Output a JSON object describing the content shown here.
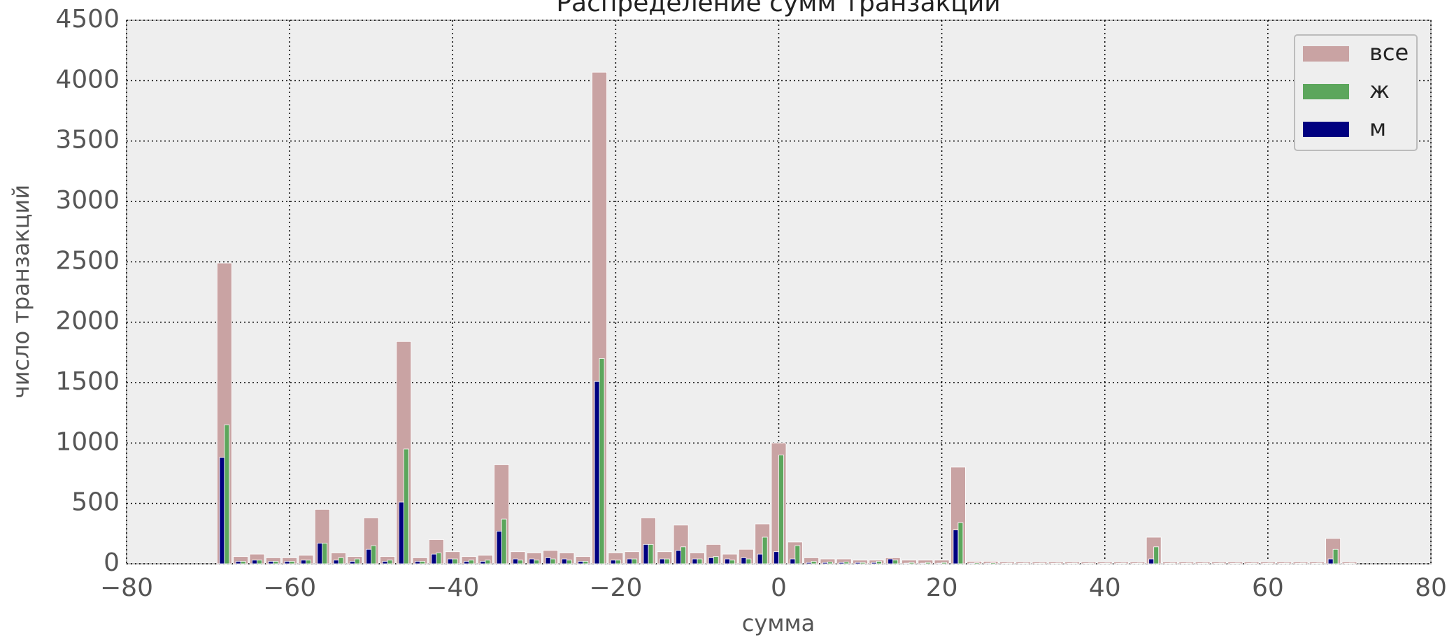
{
  "chart_data": {
    "type": "histogram",
    "title": "Распределение сумм транзакций",
    "xlabel": "сумма",
    "ylabel": "число транзакций",
    "bins": [
      -69,
      -67,
      -65,
      -63,
      -61,
      -59,
      -57,
      -55,
      -53,
      -51,
      -49,
      -47,
      -45,
      -43,
      -41,
      -39,
      -37,
      -35,
      -33,
      -31,
      -29,
      -27,
      -25,
      -23,
      -21,
      -19,
      -17,
      -15,
      -13,
      -11,
      -9,
      -7,
      -5,
      -3,
      -1,
      1,
      3,
      5,
      7,
      9,
      11,
      13,
      15,
      17,
      19,
      21,
      23,
      25,
      27,
      29,
      31,
      33,
      35,
      37,
      39,
      41,
      43,
      45,
      47,
      49,
      51,
      53,
      55,
      57,
      59,
      61,
      63,
      65,
      67,
      69,
      71
    ],
    "series": [
      {
        "name": "все",
        "color": "#c9a3a3",
        "values": [
          2490,
          60,
          80,
          50,
          50,
          70,
          450,
          90,
          60,
          380,
          60,
          1840,
          50,
          200,
          100,
          60,
          70,
          820,
          100,
          90,
          110,
          90,
          60,
          4070,
          90,
          100,
          380,
          100,
          320,
          90,
          160,
          80,
          120,
          330,
          1000,
          180,
          50,
          40,
          40,
          30,
          30,
          50,
          30,
          30,
          30,
          800,
          20,
          20,
          15,
          15,
          15,
          15,
          15,
          15,
          15,
          15,
          15,
          220,
          15,
          15,
          15,
          15,
          15,
          15,
          15,
          15,
          15,
          15,
          210,
          15
        ]
      },
      {
        "name": "ж",
        "color": "#5ca65c",
        "values": [
          1150,
          20,
          30,
          20,
          20,
          30,
          170,
          50,
          40,
          150,
          30,
          950,
          20,
          90,
          40,
          30,
          30,
          370,
          30,
          30,
          40,
          30,
          20,
          1700,
          30,
          40,
          160,
          40,
          140,
          40,
          60,
          30,
          40,
          220,
          900,
          150,
          20,
          15,
          15,
          10,
          20,
          30,
          10,
          10,
          10,
          340,
          8,
          8,
          5,
          5,
          5,
          5,
          5,
          5,
          5,
          5,
          5,
          140,
          5,
          5,
          5,
          5,
          5,
          5,
          5,
          5,
          5,
          5,
          120,
          5
        ]
      },
      {
        "name": "м",
        "color": "#000080",
        "values": [
          880,
          20,
          30,
          20,
          20,
          30,
          170,
          30,
          20,
          120,
          20,
          510,
          20,
          80,
          40,
          20,
          20,
          270,
          40,
          40,
          50,
          40,
          20,
          1510,
          30,
          40,
          160,
          40,
          110,
          40,
          50,
          40,
          50,
          80,
          100,
          40,
          10,
          10,
          10,
          10,
          10,
          40,
          5,
          5,
          5,
          280,
          5,
          5,
          3,
          3,
          3,
          3,
          3,
          3,
          3,
          3,
          3,
          40,
          3,
          3,
          3,
          3,
          3,
          3,
          3,
          3,
          3,
          3,
          40,
          3
        ]
      }
    ],
    "xlim": [
      -80,
      80
    ],
    "xticks": [
      {
        "value": -80,
        "label": "−80"
      },
      {
        "value": -60,
        "label": "−60"
      },
      {
        "value": -40,
        "label": "−40"
      },
      {
        "value": -20,
        "label": "−20"
      },
      0,
      20,
      40,
      60,
      80
    ],
    "ylim": [
      0,
      4500
    ],
    "yticks": [
      0,
      500,
      1000,
      1500,
      2000,
      2500,
      3000,
      3500,
      4000,
      4500
    ],
    "grid": true,
    "legend": "upper right"
  }
}
